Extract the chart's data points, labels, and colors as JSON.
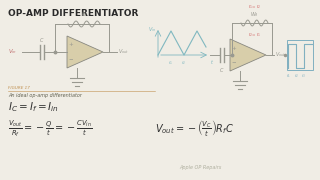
{
  "title": "OP-AMP DIFFERENTIATOR",
  "title_fontsize": 6.5,
  "title_color": "#2a2a2a",
  "bg_color": "#f0ede5",
  "caption1": "FIGURE 17",
  "caption2": "An ideal op-amp differentiator",
  "watermark": "Apple OP Repairs",
  "op_amp_fill": "#d8ceaa",
  "op_amp_edge": "#888880",
  "circuit_color": "#999990",
  "waveform_color": "#80b8c0",
  "square_wave_color": "#80b0c0",
  "vin_color": "#c07070",
  "caption1_color": "#c09050",
  "caption2_color": "#606050",
  "eq_color": "#303030",
  "watermark_color": "#b0b0a0",
  "feedback_red": "#d06060"
}
